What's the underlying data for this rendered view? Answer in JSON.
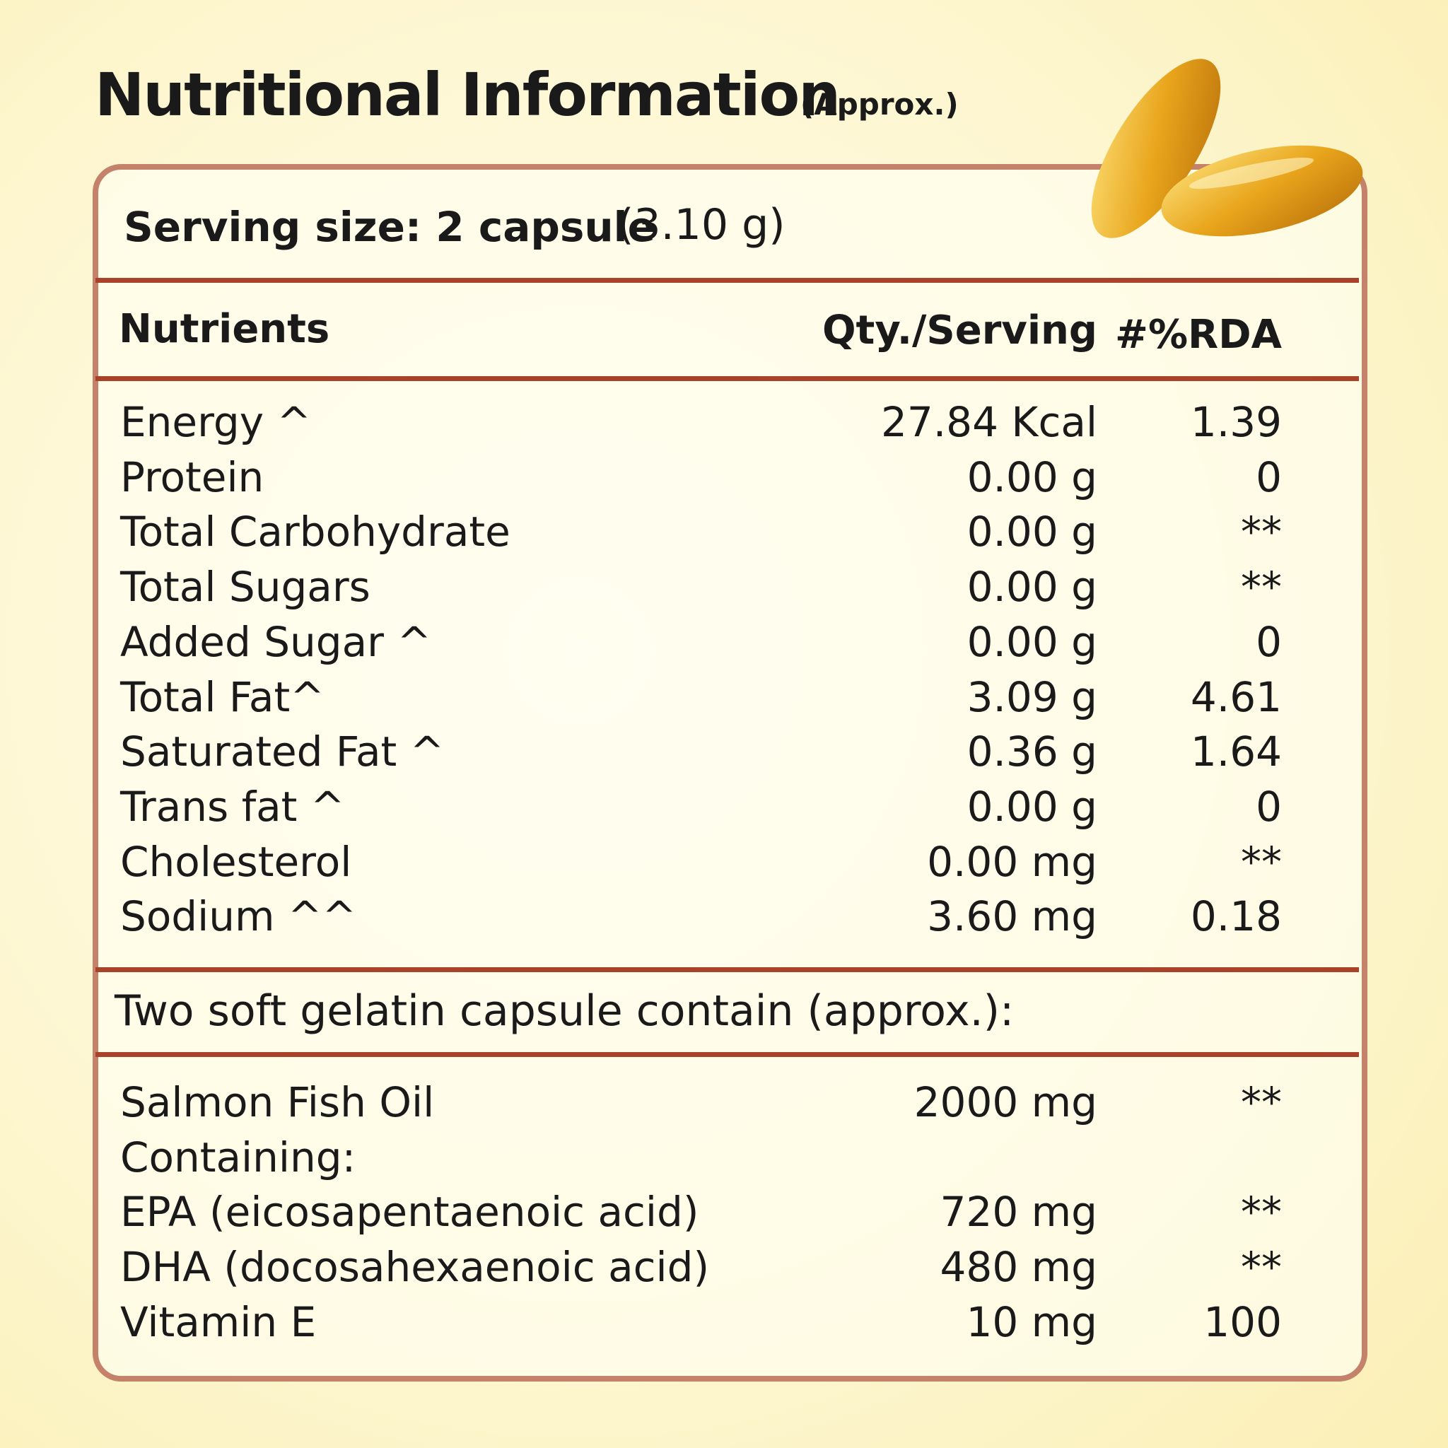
{
  "header": {
    "title": "Nutritional Information",
    "subtitle": "(Approx.)"
  },
  "serving": {
    "label": "Serving size: 2 capsule",
    "amount": "(3.10 g)"
  },
  "table": {
    "columns": [
      "Nutrients",
      "Qty./Serving",
      "#%RDA"
    ],
    "rows": [
      [
        "Energy ^",
        "27.84 Kcal",
        "1.39"
      ],
      [
        "Protein",
        "0.00 g",
        "0"
      ],
      [
        "Total Carbohydrate",
        "0.00 g",
        "**"
      ],
      [
        "Total Sugars",
        "0.00 g",
        "**"
      ],
      [
        "Added Sugar ^",
        "0.00 g",
        "0"
      ],
      [
        "Total Fat^",
        "3.09 g",
        "4.61"
      ],
      [
        "Saturated Fat ^",
        "0.36 g",
        "1.64"
      ],
      [
        "Trans fat ^",
        "0.00 g",
        "0"
      ],
      [
        "Cholesterol",
        "0.00 mg",
        "**"
      ],
      [
        "Sodium ^^",
        "3.60 mg",
        "0.18"
      ]
    ]
  },
  "section": {
    "label": "Two soft gelatin capsule contain (approx.):",
    "rows": [
      [
        "Salmon Fish Oil",
        "2000 mg",
        "**"
      ],
      [
        "Containing:",
        "",
        ""
      ],
      [
        "EPA (eicosapentaenoic acid)",
        "720 mg",
        "**"
      ],
      [
        "DHA (docosahexaenoic acid)",
        "480 mg",
        "**"
      ],
      [
        "Vitamin E",
        "10 mg",
        "100"
      ]
    ]
  }
}
